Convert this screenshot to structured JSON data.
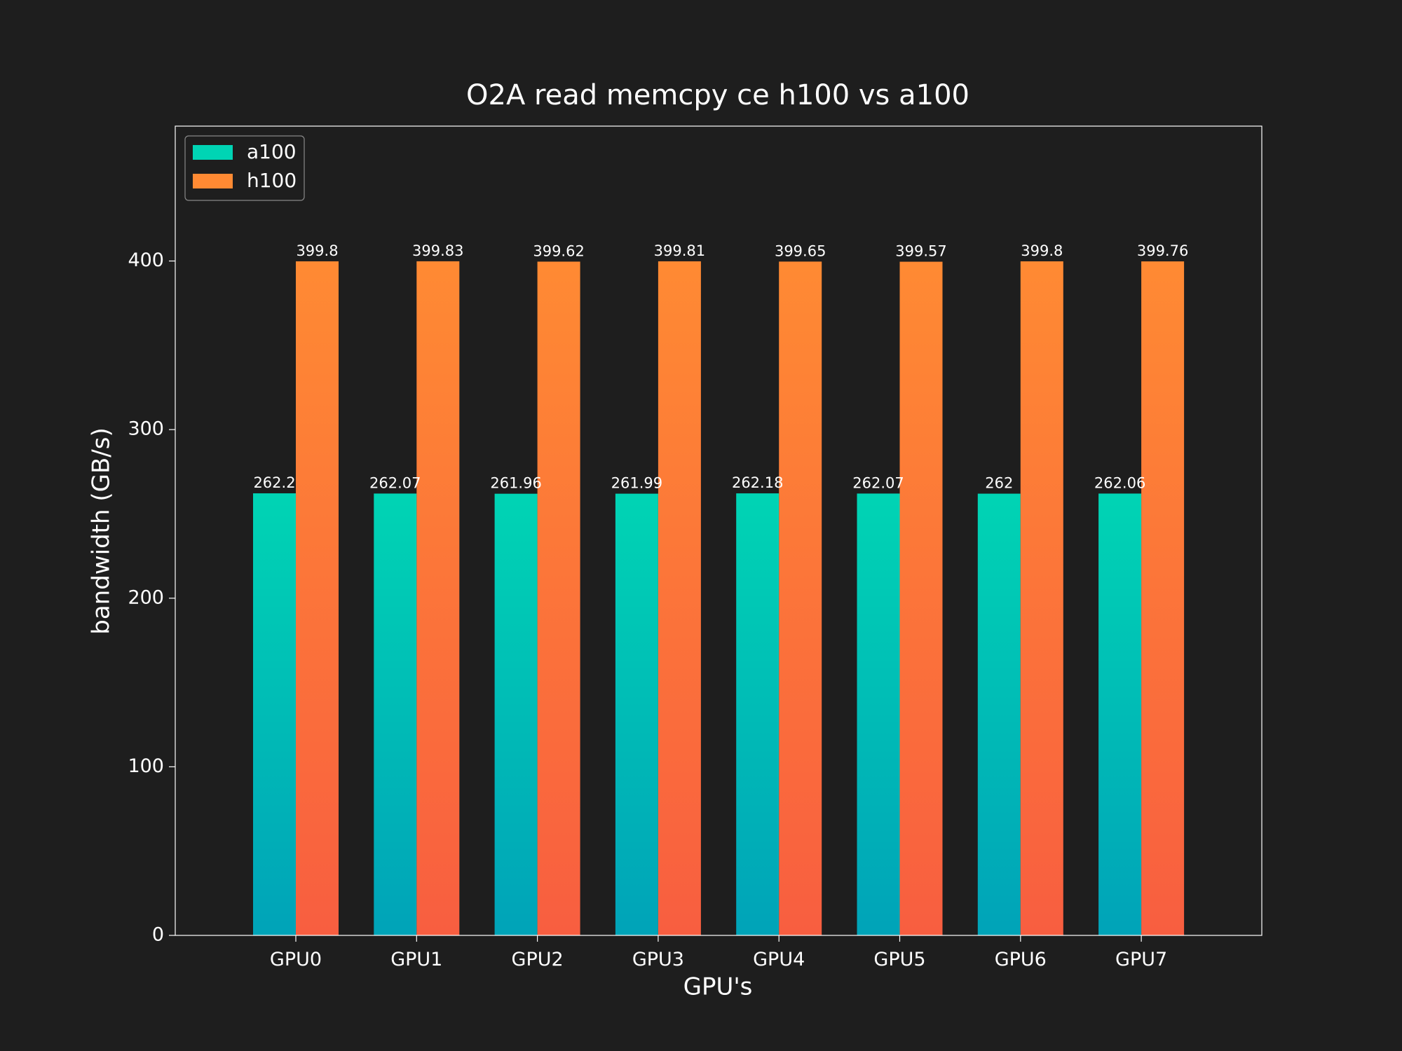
{
  "chart_data": {
    "type": "bar",
    "title": "O2A read memcpy ce h100 vs a100",
    "xlabel": "GPU's",
    "ylabel": "bandwidth (GB/s)",
    "categories": [
      "GPU0",
      "GPU1",
      "GPU2",
      "GPU3",
      "GPU4",
      "GPU5",
      "GPU6",
      "GPU7"
    ],
    "ylim": [
      0,
      480
    ],
    "yticks": [
      0,
      100,
      200,
      300,
      400
    ],
    "series": [
      {
        "name": "a100",
        "values": [
          262.2,
          262.07,
          261.96,
          261.99,
          262.18,
          262.07,
          262,
          262.06
        ],
        "value_labels": [
          "262.2",
          "262.07",
          "261.96",
          "261.99",
          "262.18",
          "262.07",
          "262",
          "262.06"
        ],
        "color_top": "#00d4b4",
        "color_bottom": "#00a3b8"
      },
      {
        "name": "h100",
        "values": [
          399.8,
          399.83,
          399.62,
          399.81,
          399.65,
          399.57,
          399.8,
          399.76
        ],
        "value_labels": [
          "399.8",
          "399.83",
          "399.62",
          "399.81",
          "399.65",
          "399.57",
          "399.8",
          "399.76"
        ],
        "color_top": "#ff8a33",
        "color_bottom": "#f85e40"
      }
    ],
    "legend": {
      "position": "top-left"
    },
    "grid": false,
    "colors": {
      "background": "#1e1e1e",
      "text": "#ffffff",
      "axes": "#ffffff"
    }
  }
}
